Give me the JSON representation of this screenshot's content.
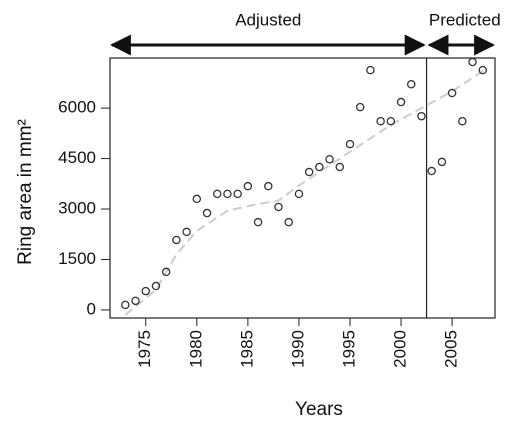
{
  "chart_data": {
    "type": "scatter",
    "xlabel": "Years",
    "ylabel": "Ring area in mm²",
    "xlim": [
      1971.5,
      2009.2
    ],
    "ylim": [
      -240,
      7490
    ],
    "xticks": [
      1975,
      1980,
      1985,
      1990,
      1995,
      2000,
      2005
    ],
    "yticks": [
      0,
      1500,
      3000,
      4500,
      6000
    ],
    "split": 2002.5,
    "annotations": [
      "Adjusted",
      "Predicted"
    ],
    "series": [
      {
        "color": "#333333",
        "x": [
          1973,
          1974,
          1975,
          1976,
          1977,
          1978,
          1979,
          1980,
          1981,
          1982,
          1983,
          1984,
          1985,
          1986,
          1987,
          1988,
          1989,
          1990,
          1991,
          1992,
          1993,
          1994,
          1995,
          1996,
          1997,
          1998,
          1999,
          2000,
          2001,
          2002,
          2003,
          2004,
          2005,
          2006,
          2007,
          2008
        ],
        "values": [
          150,
          270,
          560,
          710,
          1130,
          2080,
          2320,
          3300,
          2880,
          3450,
          3450,
          3450,
          3680,
          2610,
          3680,
          3060,
          2610,
          3450,
          4100,
          4250,
          4480,
          4250,
          4930,
          6030,
          7130,
          5610,
          5610,
          6180,
          6710,
          5760,
          4130,
          4400,
          6450,
          5610,
          7370,
          7130
        ]
      },
      {
        "color": "#cccccc",
        "x": [
          1973,
          1976,
          1978,
          1980,
          1983,
          1986,
          1988,
          1990,
          1993,
          1996,
          1999,
          2002,
          2005,
          2008
        ],
        "values": [
          -150,
          600,
          1650,
          2350,
          2950,
          3150,
          3250,
          3700,
          4300,
          4900,
          5500,
          6000,
          6500,
          7100
        ]
      }
    ]
  }
}
